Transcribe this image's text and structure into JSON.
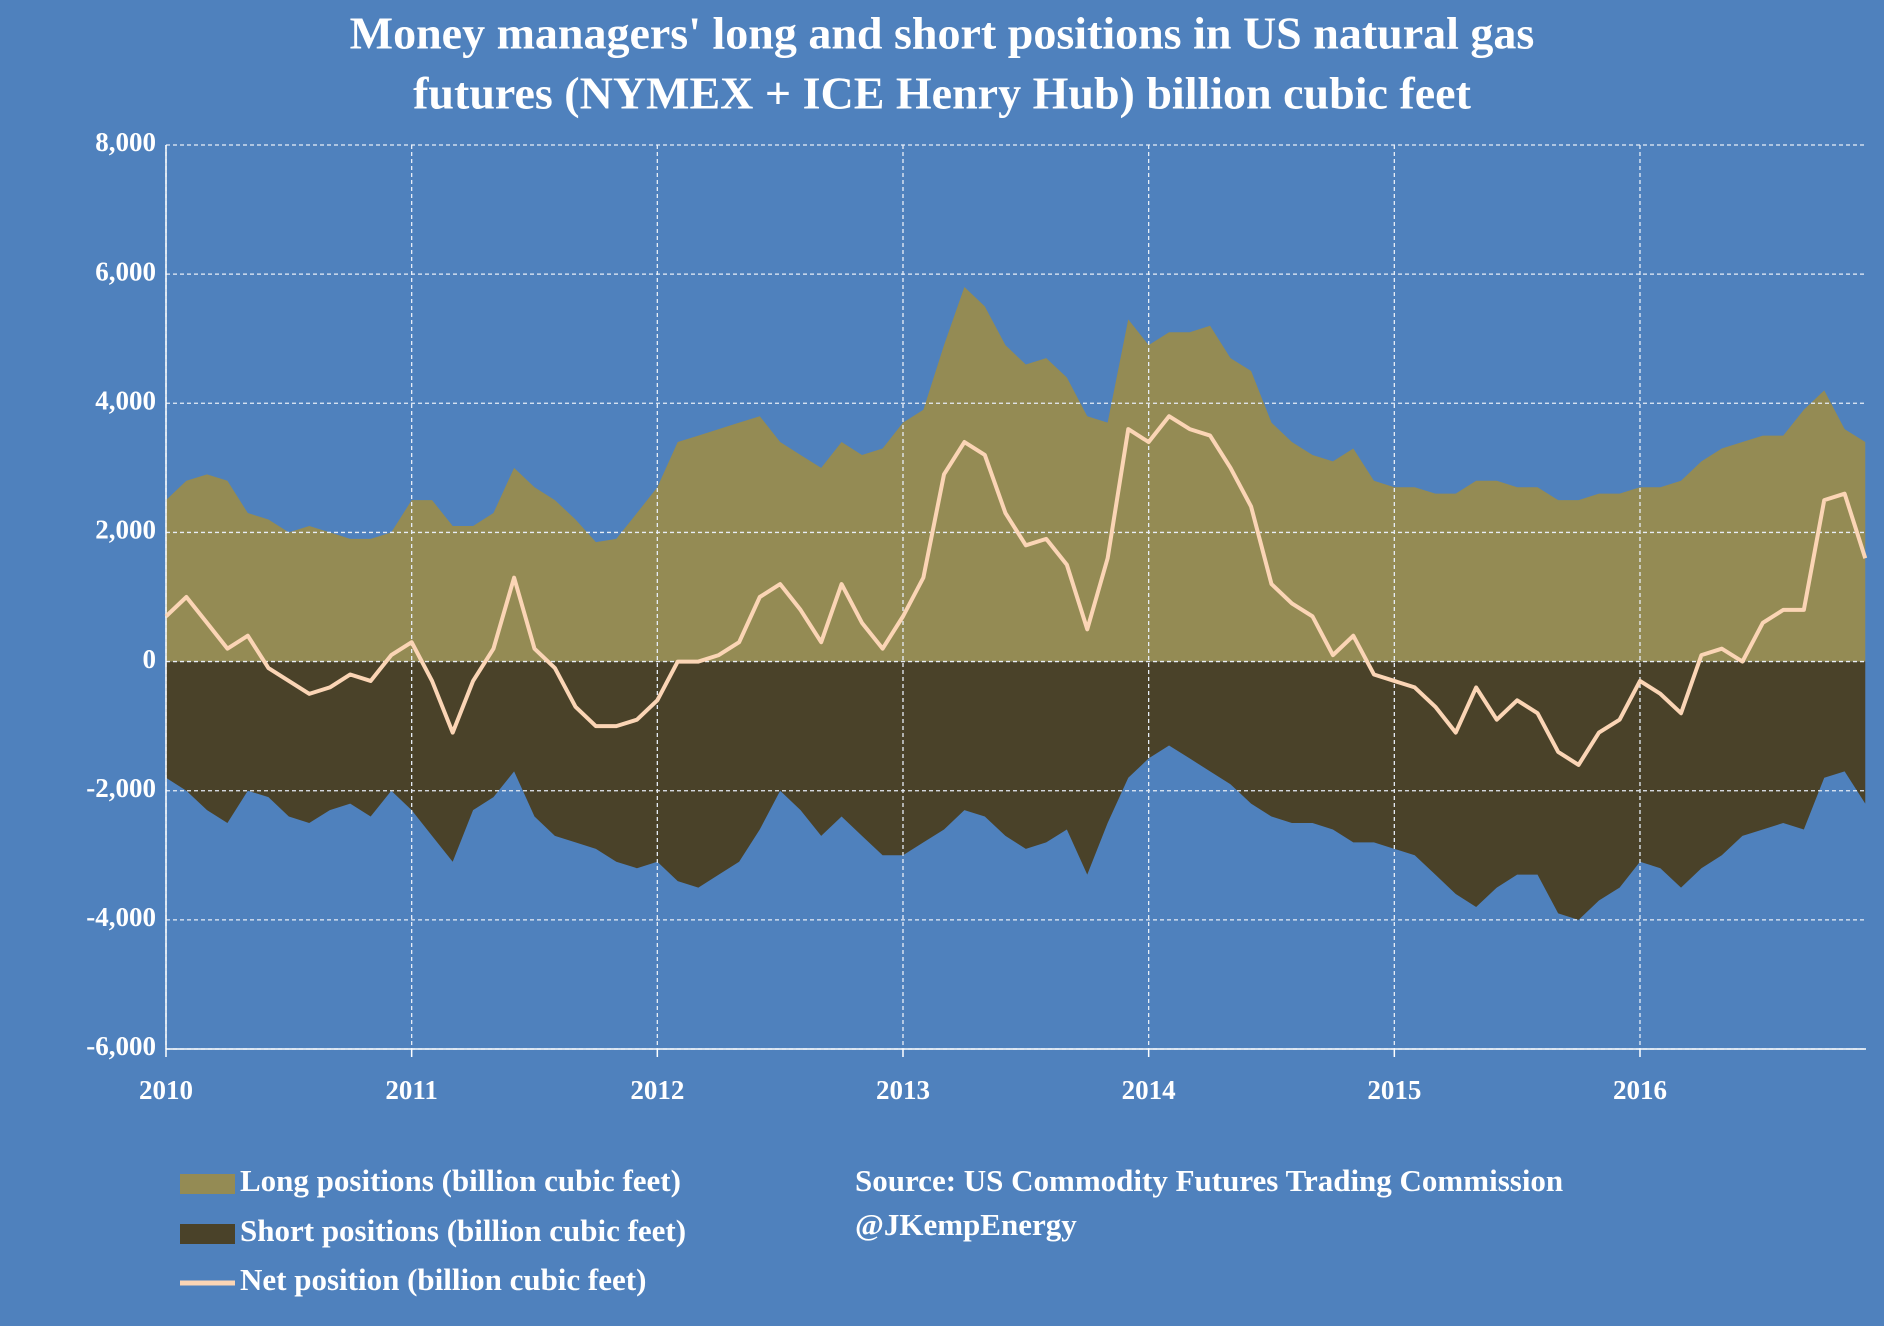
{
  "chart_data": {
    "type": "area-line",
    "title": [
      "Money managers' long and short positions in US natural gas",
      "futures (NYMEX + ICE Henry Hub) billion cubic feet"
    ],
    "source": [
      "Source: US Commodity Futures Trading Commission",
      "@JKempEnergy"
    ],
    "x": [
      2010,
      2010.083,
      2010.167,
      2010.25,
      2010.333,
      2010.417,
      2010.5,
      2010.583,
      2010.667,
      2010.75,
      2010.833,
      2010.917,
      2011,
      2011.083,
      2011.167,
      2011.25,
      2011.333,
      2011.417,
      2011.5,
      2011.583,
      2011.667,
      2011.75,
      2011.833,
      2011.917,
      2012,
      2012.083,
      2012.167,
      2012.25,
      2012.333,
      2012.417,
      2012.5,
      2012.583,
      2012.667,
      2012.75,
      2012.833,
      2012.917,
      2013,
      2013.083,
      2013.167,
      2013.25,
      2013.333,
      2013.417,
      2013.5,
      2013.583,
      2013.667,
      2013.75,
      2013.833,
      2013.917,
      2014,
      2014.083,
      2014.167,
      2014.25,
      2014.333,
      2014.417,
      2014.5,
      2014.583,
      2014.667,
      2014.75,
      2014.833,
      2014.917,
      2015,
      2015.083,
      2015.167,
      2015.25,
      2015.333,
      2015.417,
      2015.5,
      2015.583,
      2015.667,
      2015.75,
      2015.833,
      2015.917,
      2016,
      2016.083,
      2016.167,
      2016.25,
      2016.333,
      2016.417,
      2016.5,
      2016.583,
      2016.667,
      2016.75,
      2016.833,
      2016.917
    ],
    "series": [
      {
        "name": "Long positions (billion cubic feet)",
        "color": "#948b54",
        "kind": "area",
        "values": [
          2500,
          2800,
          2900,
          2800,
          2300,
          2200,
          2000,
          2100,
          2000,
          1900,
          1900,
          2000,
          2500,
          2500,
          2100,
          2100,
          2300,
          3000,
          2700,
          2500,
          2200,
          1850,
          1900,
          2300,
          2700,
          3400,
          3500,
          3600,
          3700,
          3800,
          3400,
          3200,
          3000,
          3400,
          3200,
          3300,
          3700,
          3900,
          4900,
          5800,
          5500,
          4900,
          4600,
          4700,
          4400,
          3800,
          3700,
          5300,
          4900,
          5100,
          5100,
          5200,
          4700,
          4500,
          3700,
          3400,
          3200,
          3100,
          3300,
          2800,
          2700,
          2700,
          2600,
          2600,
          2800,
          2800,
          2700,
          2700,
          2500,
          2500,
          2600,
          2600,
          2700,
          2700,
          2800,
          3100,
          3300,
          3400,
          3500,
          3500,
          3900,
          4200,
          3600,
          3400
        ]
      },
      {
        "name": "Short positions (billion cubic feet)",
        "color": "#4a4229",
        "kind": "area",
        "values": [
          -1800,
          -2000,
          -2300,
          -2500,
          -2000,
          -2100,
          -2400,
          -2500,
          -2300,
          -2200,
          -2400,
          -2000,
          -2300,
          -2700,
          -3100,
          -2300,
          -2100,
          -1700,
          -2400,
          -2700,
          -2800,
          -2900,
          -3100,
          -3200,
          -3100,
          -3400,
          -3500,
          -3300,
          -3100,
          -2600,
          -2000,
          -2300,
          -2700,
          -2400,
          -2700,
          -3000,
          -3000,
          -2800,
          -2600,
          -2300,
          -2400,
          -2700,
          -2900,
          -2800,
          -2600,
          -3300,
          -2500,
          -1800,
          -1500,
          -1300,
          -1500,
          -1700,
          -1900,
          -2200,
          -2400,
          -2500,
          -2500,
          -2600,
          -2800,
          -2800,
          -2900,
          -3000,
          -3300,
          -3600,
          -3800,
          -3500,
          -3300,
          -3300,
          -3900,
          -4000,
          -3700,
          -3500,
          -3100,
          -3200,
          -3500,
          -3200,
          -3000,
          -2700,
          -2600,
          -2500,
          -2600,
          -1800,
          -1700,
          -2200
        ]
      },
      {
        "name": "Net position (billion cubic feet)",
        "color": "#fbd5b5",
        "kind": "line",
        "values": [
          700,
          1000,
          600,
          200,
          400,
          -100,
          -300,
          -500,
          -400,
          -200,
          -300,
          100,
          300,
          -300,
          -1100,
          -300,
          200,
          1300,
          200,
          -100,
          -700,
          -1000,
          -1000,
          -900,
          -600,
          0,
          0,
          100,
          300,
          1000,
          1200,
          800,
          300,
          1200,
          600,
          200,
          700,
          1300,
          2900,
          3400,
          3200,
          2300,
          1800,
          1900,
          1500,
          500,
          1600,
          3600,
          3400,
          3800,
          3600,
          3500,
          3000,
          2400,
          1200,
          900,
          700,
          100,
          400,
          -200,
          -300,
          -400,
          -700,
          -1100,
          -400,
          -900,
          -600,
          -800,
          -1400,
          -1600,
          -1100,
          -900,
          -300,
          -500,
          -800,
          100,
          200,
          0,
          600,
          800,
          800,
          2500,
          2600,
          1600
        ]
      }
    ],
    "xlim": [
      2010,
      2016.92
    ],
    "xticks": [
      2010,
      2011,
      2012,
      2013,
      2014,
      2015,
      2016
    ],
    "ylim": [
      -6000,
      8000
    ],
    "yticks": [
      {
        "value": -6000,
        "label": "-6,000"
      },
      {
        "value": -4000,
        "label": "-4,000"
      },
      {
        "value": -2000,
        "label": "-2,000"
      },
      0,
      {
        "value": 2000,
        "label": "2,000"
      },
      {
        "value": 4000,
        "label": "4,000"
      },
      {
        "value": 6000,
        "label": "6,000"
      },
      {
        "value": 8000,
        "label": "8,000"
      }
    ],
    "grid": true
  }
}
